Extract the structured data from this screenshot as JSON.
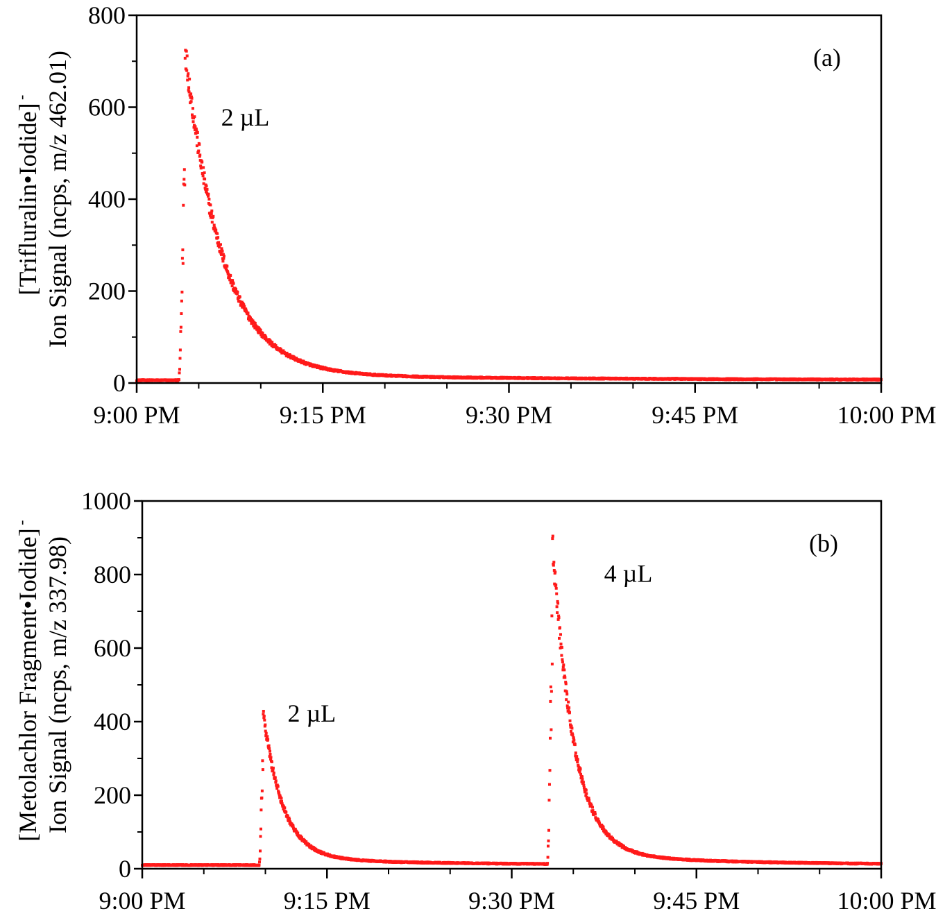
{
  "colors": {
    "marker": "#ff1a1a",
    "axis": "#000000",
    "background": "#ffffff"
  },
  "chart_data": [
    {
      "type": "scatter",
      "panel": "(a)",
      "ylabel_line1": "[Trifluralin•Iodide]",
      "ylabel_sup": "-",
      "ylabel_line2": "Ion Signal (ncps, m/z 462.01)",
      "xlabel": "",
      "x_unit": "minutes after 9:00 PM",
      "xlim": [
        0,
        60
      ],
      "ylim": [
        0,
        800
      ],
      "x_ticks": [
        0,
        15,
        30,
        45,
        60
      ],
      "x_tick_labels": [
        "9:00 PM",
        "9:15 PM",
        "9:30 PM",
        "9:45 PM",
        "10:00 PM"
      ],
      "y_ticks": [
        0,
        200,
        400,
        600,
        800
      ],
      "y_tick_labels": [
        "0",
        "200",
        "400",
        "600",
        "800"
      ],
      "grid": false,
      "annotations": [
        {
          "text": "2 µL",
          "x": 6.8,
          "y": 560
        }
      ],
      "series": [
        {
          "baseline": 6,
          "peaks": [
            {
              "start": 3.4,
              "peak_time": 3.9,
              "peak": 720,
              "tau": 3.0,
              "tail": 14,
              "tail_tau": 25
            }
          ]
        }
      ]
    },
    {
      "type": "scatter",
      "panel": "(b)",
      "ylabel_line1": "[Metolachlor Fragment•Iodide]",
      "ylabel_sup": "-",
      "ylabel_line2": "Ion Signal (ncps, m/z 337.98)",
      "xlabel": "",
      "x_unit": "minutes after 9:00 PM",
      "xlim": [
        0,
        60
      ],
      "ylim": [
        0,
        1000
      ],
      "x_ticks": [
        0,
        15,
        30,
        45,
        60
      ],
      "x_tick_labels": [
        "9:00 PM",
        "9:15 PM",
        "9:30 PM",
        "9:45 PM",
        "10:00 PM"
      ],
      "y_ticks": [
        0,
        200,
        400,
        600,
        800,
        1000
      ],
      "y_tick_labels": [
        "0",
        "200",
        "400",
        "600",
        "800",
        "1000"
      ],
      "grid": false,
      "annotations": [
        {
          "text": "2 µL",
          "x": 11.8,
          "y": 400
        },
        {
          "text": "4 µL",
          "x": 37.5,
          "y": 780
        }
      ],
      "series": [
        {
          "baseline": 10,
          "peaks": [
            {
              "start": 9.5,
              "peak_time": 9.8,
              "peak": 420,
              "tau": 1.6,
              "tail": 20,
              "tail_tau": 12
            },
            {
              "start": 32.9,
              "peak_time": 33.3,
              "peak": 880,
              "tau": 1.7,
              "tail": 30,
              "tail_tau": 12
            }
          ]
        }
      ]
    }
  ]
}
